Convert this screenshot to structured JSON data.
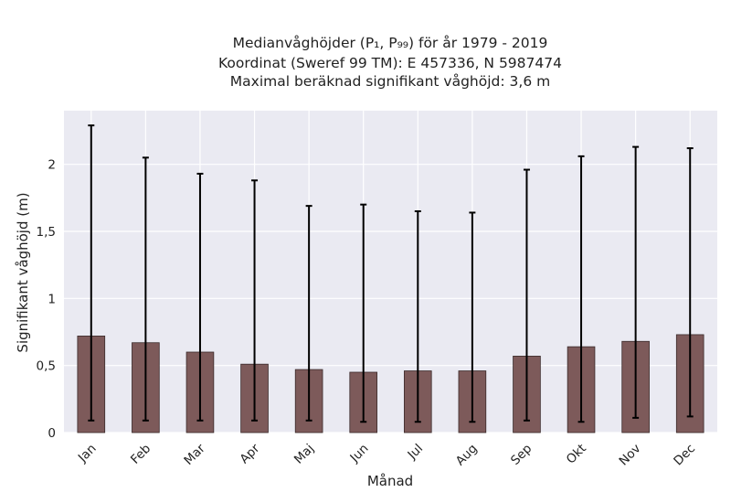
{
  "chart_data": {
    "type": "bar",
    "title_lines": [
      "Medianvåghöjder (P₁, P₉₉) för år 1979 - 2019",
      "Koordinat (Sweref 99 TM): E 457336, N 5987474",
      "Maximal beräknad signifikant våghöjd: 3,6 m"
    ],
    "xlabel": "Månad",
    "ylabel": "Signifikant våghöjd (m)",
    "categories": [
      "Jan",
      "Feb",
      "Mar",
      "Apr",
      "Maj",
      "Jun",
      "Jul",
      "Aug",
      "Sep",
      "Okt",
      "Nov",
      "Dec"
    ],
    "values": [
      0.72,
      0.67,
      0.6,
      0.51,
      0.47,
      0.45,
      0.46,
      0.46,
      0.57,
      0.64,
      0.68,
      0.73
    ],
    "p1": [
      0.09,
      0.09,
      0.09,
      0.09,
      0.09,
      0.08,
      0.08,
      0.08,
      0.09,
      0.08,
      0.11,
      0.12
    ],
    "p99": [
      2.29,
      2.05,
      1.93,
      1.88,
      1.69,
      1.7,
      1.65,
      1.64,
      1.96,
      2.06,
      2.13,
      2.12
    ],
    "yticks": [
      0,
      0.5,
      1,
      1.5,
      2
    ],
    "ytick_labels": [
      "0",
      "0,5",
      "1",
      "1,5",
      "2"
    ],
    "ylim": [
      0,
      2.4
    ],
    "grid": true,
    "colors": {
      "bar": "#7d5a5a",
      "bar_edge": "#3a2a2a",
      "errorbar": "#000000",
      "plot_bg": "#eaeaf2",
      "grid": "#ffffff"
    }
  }
}
